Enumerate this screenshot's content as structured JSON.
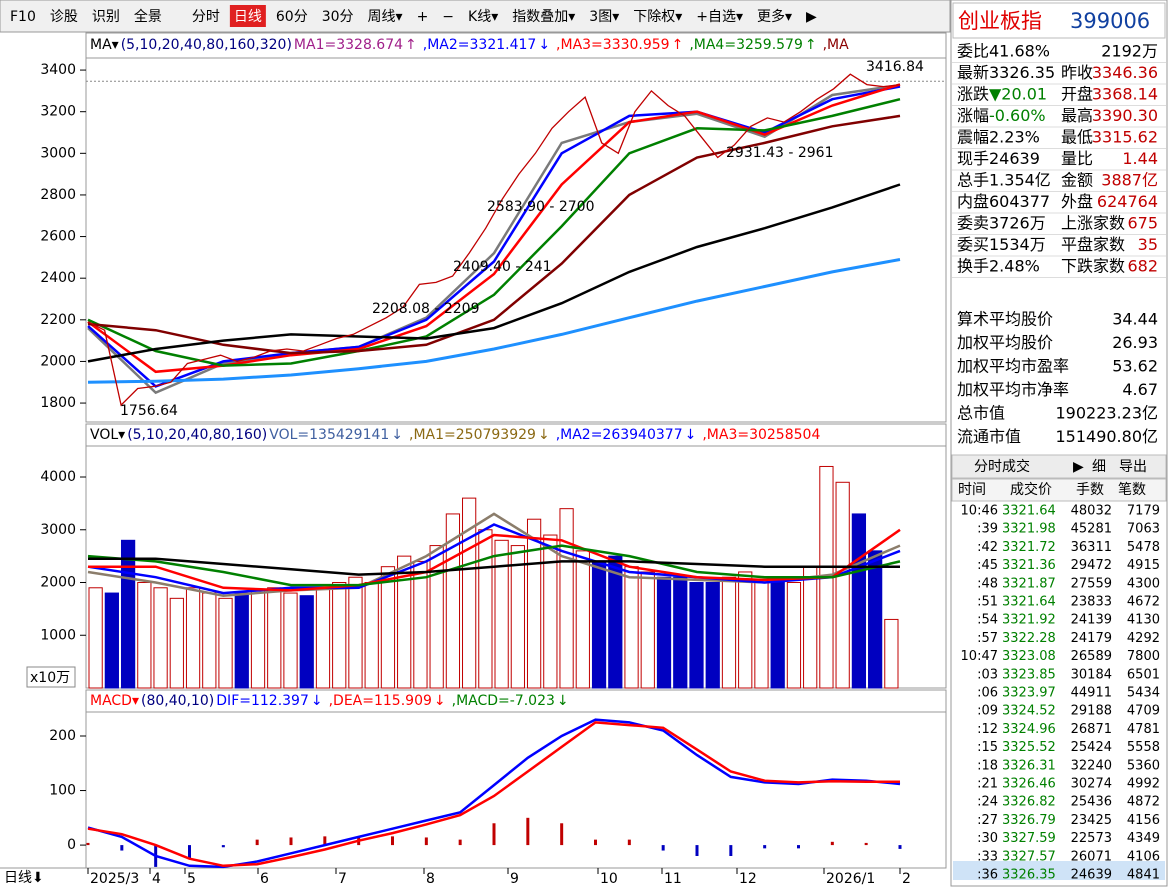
{
  "toolbar": [
    "F10",
    "诊股",
    "识别",
    "全景",
    "分时",
    "日线",
    "60分",
    "30分",
    "周线▾",
    "+",
    "−",
    "K线▾",
    "指数叠加▾",
    "3图▾",
    "下除权▾",
    "+自选▾",
    "更多▾",
    "▶"
  ],
  "active_tab": "日线",
  "price_panel": {
    "header": [
      {
        "text": "MA▾",
        "color": "#000000"
      },
      {
        "text": "(5,10,20,40,80,160,320)",
        "color": "#000080"
      },
      {
        "text": "MA1=3328.674",
        "arrow": "↑",
        "color": "#a0208a"
      },
      {
        "text": ",MA2=3321.417",
        "arrow": "↓",
        "color": "#0000ff"
      },
      {
        "text": ",MA3=3330.959",
        "arrow": "↑",
        "color": "#ff0000"
      },
      {
        "text": ",MA4=3259.579",
        "arrow": "↑",
        "color": "#008000"
      },
      {
        "text": ",MA",
        "color": "#8b0000"
      }
    ],
    "ylim": [
      1709,
      3458
    ],
    "yticks": [
      1800,
      2000,
      2200,
      2400,
      2600,
      2800,
      3000,
      3200,
      3400
    ],
    "close": [
      2190,
      2150,
      1790,
      1870,
      1880,
      1900,
      1990,
      2010,
      2030,
      2000,
      2020,
      2050,
      2060,
      2050,
      2080,
      2110,
      2130,
      2170,
      2210,
      2260,
      2370,
      2380,
      2410,
      2520,
      2640,
      2780,
      2900,
      3000,
      3120,
      3200,
      3270,
      3050,
      3000,
      3200,
      3300,
      3230,
      3180,
      3080,
      2980,
      3040,
      3130,
      3170,
      3150,
      3200,
      3260,
      3310,
      3380,
      3330,
      3320,
      3330
    ],
    "close_color": "#c00000",
    "ma_lines": [
      {
        "color": "#7a7a7a",
        "values": [
          2160,
          1850,
          1990,
          2040,
          2070,
          2210,
          2520,
          3050,
          3150,
          3190,
          3080,
          3280,
          3328
        ]
      },
      {
        "color": "#0000ff",
        "values": [
          2170,
          1880,
          2000,
          2040,
          2070,
          2200,
          2480,
          3000,
          3180,
          3200,
          3100,
          3260,
          3321
        ]
      },
      {
        "color": "#ff0000",
        "values": [
          2190,
          1950,
          1980,
          2030,
          2060,
          2170,
          2420,
          2850,
          3150,
          3200,
          3090,
          3230,
          3331
        ]
      },
      {
        "color": "#008000",
        "values": [
          2200,
          2050,
          1980,
          1990,
          2050,
          2120,
          2320,
          2650,
          3000,
          3120,
          3110,
          3180,
          3260
        ]
      },
      {
        "color": "#800000",
        "values": [
          2180,
          2150,
          2080,
          2040,
          2050,
          2080,
          2200,
          2470,
          2800,
          2980,
          3050,
          3130,
          3180
        ]
      },
      {
        "color": "#000000",
        "values": [
          2000,
          2060,
          2100,
          2130,
          2120,
          2110,
          2160,
          2280,
          2430,
          2550,
          2640,
          2740,
          2850
        ]
      },
      {
        "color": "#1e90ff",
        "values": [
          1900,
          1905,
          1915,
          1935,
          1965,
          2000,
          2060,
          2130,
          2210,
          2290,
          2360,
          2430,
          2490
        ]
      }
    ],
    "annotations": [
      "3416.84",
      "1756.64",
      "2931.43 - 2961",
      "2583.90 - 2700",
      "2409.40 - 241",
      "2208.08 - 2209"
    ]
  },
  "volume_panel": {
    "header": [
      {
        "text": "VOL▾",
        "color": "#000000"
      },
      {
        "text": "(5,10,20,40,80,160)",
        "color": "#000080"
      },
      {
        "text": "VOL=135429141",
        "arrow": "↓",
        "color": "#4060a0"
      },
      {
        "text": ",MA1=250793929",
        "arrow": "↓",
        "color": "#8b6914"
      },
      {
        "text": ",MA2=263940377",
        "arrow": "↓",
        "color": "#0000ff"
      },
      {
        "text": ",MA3=30258504",
        "color": "#ff0000"
      }
    ],
    "unit": "x10万",
    "ylim": [
      0,
      4588
    ],
    "yticks": [
      1000,
      2000,
      3000,
      4000
    ],
    "values": [
      1900,
      1800,
      2800,
      2000,
      1900,
      1700,
      1900,
      1800,
      1700,
      1800,
      1850,
      1900,
      1800,
      1750,
      1900,
      2000,
      2100,
      2000,
      2300,
      2500,
      2400,
      2700,
      3300,
      3600,
      3000,
      2800,
      2700,
      3200,
      2900,
      3400,
      2600,
      2400,
      2500,
      2300,
      2200,
      2100,
      2100,
      2000,
      2000,
      2100,
      2200,
      2000,
      2100,
      2000,
      2300,
      4200,
      3900,
      3300,
      2600,
      1300
    ],
    "ma_lines": [
      {
        "color": "#8b7d6b",
        "values": [
          2200,
          2000,
          1750,
          1850,
          1900,
          2500,
          3300,
          2500,
          2100,
          2050,
          2000,
          2150,
          2700
        ]
      },
      {
        "color": "#0000ff",
        "values": [
          2300,
          2100,
          1800,
          1900,
          1900,
          2400,
          3100,
          2600,
          2200,
          2100,
          2000,
          2100,
          2600
        ]
      },
      {
        "color": "#ff0000",
        "values": [
          2300,
          2300,
          1900,
          1850,
          1950,
          2200,
          2900,
          2800,
          2300,
          2100,
          2050,
          2100,
          3000
        ]
      },
      {
        "color": "#008000",
        "values": [
          2500,
          2400,
          2200,
          1950,
          1950,
          2100,
          2500,
          2700,
          2500,
          2200,
          2100,
          2100,
          2400
        ]
      },
      {
        "color": "#000000",
        "values": [
          2450,
          2450,
          2350,
          2250,
          2150,
          2200,
          2300,
          2400,
          2400,
          2350,
          2300,
          2300,
          2300
        ]
      }
    ]
  },
  "macd_panel": {
    "header": [
      {
        "text": "MACD▾",
        "color": "#ff0000"
      },
      {
        "text": "(80,40,10)",
        "color": "#000080"
      },
      {
        "text": "DIF=112.397",
        "arrow": "↓",
        "color": "#0000ff"
      },
      {
        "text": ",DEA=115.909",
        "arrow": "↓",
        "color": "#ff0000"
      },
      {
        "text": ",MACD=-7.023",
        "arrow": "↓",
        "color": "#008000"
      }
    ],
    "ylim": [
      -42,
      244
    ],
    "yticks": [
      0,
      100,
      200
    ],
    "dif": [
      32,
      15,
      -20,
      -38,
      -40,
      -30,
      -15,
      0,
      15,
      30,
      45,
      60,
      110,
      160,
      200,
      230,
      225,
      210,
      165,
      125,
      115,
      112,
      120,
      118,
      112
    ],
    "dea": [
      30,
      20,
      0,
      -25,
      -38,
      -35,
      -22,
      -8,
      8,
      22,
      38,
      55,
      90,
      135,
      180,
      225,
      220,
      215,
      175,
      135,
      118,
      115,
      117,
      116,
      116
    ],
    "macd": [
      4,
      -10,
      -40,
      -26,
      -4,
      10,
      14,
      16,
      14,
      16,
      14,
      10,
      40,
      50,
      40,
      10,
      10,
      -10,
      -20,
      -20,
      -6,
      -6,
      6,
      4,
      -7
    ]
  },
  "x_axis": {
    "period": "日线⬇",
    "labels": [
      "2025/3",
      "4",
      "5",
      "6",
      "7",
      "8",
      "9",
      "10",
      "11",
      "12",
      "2026/1",
      "2"
    ]
  },
  "quote": {
    "name": "创业板指",
    "code": "399006",
    "rows": [
      {
        "l": "委比",
        "lv": "41.68%",
        "rv": "2192万"
      },
      {
        "l": "最新",
        "lv": "3326.35",
        "r": "昨收",
        "rv": "3346.36"
      },
      {
        "l": "涨跌",
        "lv": "▼20.01",
        "r": "开盘",
        "rv": "3368.14"
      },
      {
        "l": "涨幅",
        "lv": "-0.60%",
        "r": "最高",
        "rv": "3390.30"
      },
      {
        "l": "震幅",
        "lv": "2.23%",
        "r": "最低",
        "rv": "3315.62"
      },
      {
        "l": "现手",
        "lv": "24639",
        "r": "量比",
        "rv": "1.44"
      },
      {
        "l": "总手",
        "lv": "1.354亿",
        "r": "金额",
        "rv": "3887亿"
      },
      {
        "l": "内盘",
        "lv": "604377",
        "r": "外盘",
        "rv": "624764"
      },
      {
        "l": "委卖",
        "lv": "3726万",
        "r": "上涨家数",
        "rv": "675"
      },
      {
        "l": "委买",
        "lv": "1534万",
        "r": "平盘家数",
        "rv": "35"
      },
      {
        "l": "换手",
        "lv": "2.48%",
        "r": "下跌家数",
        "rv": "682"
      }
    ],
    "stats": [
      [
        "算术平均股价",
        "34.44"
      ],
      [
        "加权平均股价",
        "26.93"
      ],
      [
        "加权平均市盈率",
        "53.62"
      ],
      [
        "加权平均市净率",
        "4.67"
      ],
      [
        "总市值",
        "190223.23亿"
      ],
      [
        "流通市值",
        "151490.80亿"
      ]
    ]
  },
  "trades": {
    "tabs": [
      "分时成交",
      "▶",
      "细",
      "导出"
    ],
    "columns": [
      "时间",
      "成交价",
      "手数",
      "笔数"
    ],
    "rows": [
      [
        "10:46",
        "3321.64",
        "48032",
        "7179"
      ],
      [
        ":39",
        "3321.98",
        "45281",
        "7063"
      ],
      [
        ":42",
        "3321.72",
        "36311",
        "5478"
      ],
      [
        ":45",
        "3321.36",
        "29472",
        "4915"
      ],
      [
        ":48",
        "3321.87",
        "27559",
        "4300"
      ],
      [
        ":51",
        "3321.64",
        "23833",
        "4672"
      ],
      [
        ":54",
        "3321.92",
        "24139",
        "4130"
      ],
      [
        ":57",
        "3322.28",
        "24179",
        "4292"
      ],
      [
        "10:47",
        "3323.08",
        "26589",
        "7800"
      ],
      [
        ":03",
        "3323.85",
        "30184",
        "6501"
      ],
      [
        ":06",
        "3323.97",
        "44911",
        "5434"
      ],
      [
        ":09",
        "3324.52",
        "29188",
        "4709"
      ],
      [
        ":12",
        "3324.96",
        "26871",
        "4781"
      ],
      [
        ":15",
        "3325.52",
        "25424",
        "5558"
      ],
      [
        ":18",
        "3326.31",
        "32240",
        "5360"
      ],
      [
        ":21",
        "3326.46",
        "30274",
        "4992"
      ],
      [
        ":24",
        "3326.82",
        "25436",
        "4872"
      ],
      [
        ":27",
        "3326.79",
        "23425",
        "4156"
      ],
      [
        ":30",
        "3327.59",
        "22573",
        "4349"
      ],
      [
        ":33",
        "3327.57",
        "26071",
        "4106"
      ],
      [
        ":36",
        "3326.35",
        "24639",
        "4841"
      ]
    ]
  }
}
